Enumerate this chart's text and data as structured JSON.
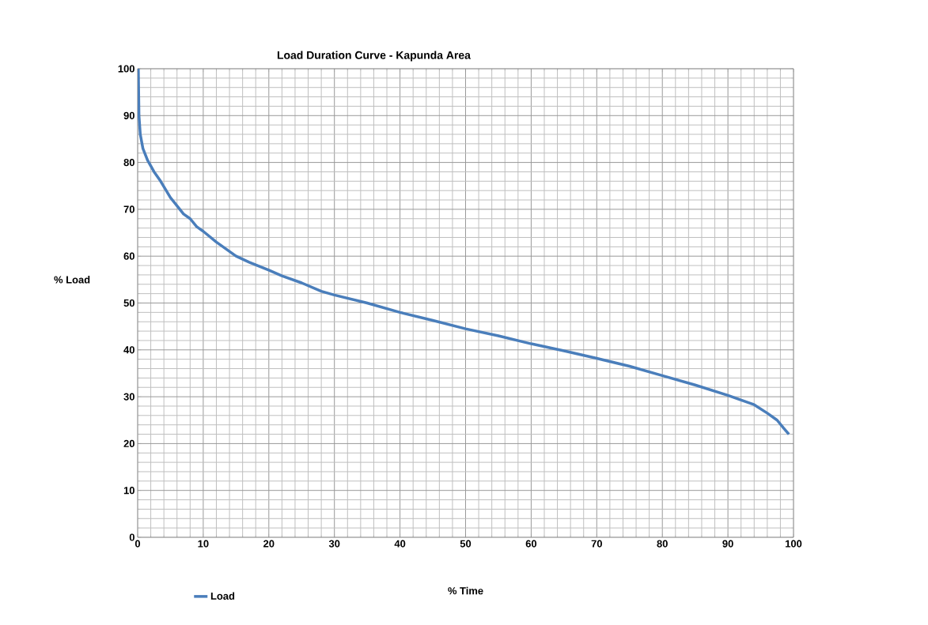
{
  "chart_data": {
    "type": "line",
    "title": "Load Duration Curve - Kapunda Area",
    "xlabel": "% Time",
    "ylabel": "% Load",
    "x": [
      0.1,
      0.2,
      0.4,
      0.8,
      1.5,
      2.5,
      3.5,
      5,
      7,
      8,
      9,
      10,
      12,
      15,
      17,
      20,
      22,
      25,
      28,
      30,
      35,
      40,
      45,
      50,
      55,
      60,
      65,
      70,
      75,
      80,
      85,
      90,
      94,
      96,
      97.5,
      98.5,
      99.3
    ],
    "series": [
      {
        "name": "Load",
        "color": "#4a7ebb",
        "values": [
          100,
          90,
          86,
          83,
          80.5,
          78,
          76,
          72.5,
          69,
          68,
          66.3,
          65.3,
          63,
          60,
          58.7,
          57,
          55.8,
          54.3,
          52.5,
          51.7,
          50,
          48,
          46.3,
          44.5,
          43,
          41.3,
          39.8,
          38.2,
          36.5,
          34.5,
          32.5,
          30.3,
          28.3,
          26.5,
          25,
          23.3,
          22
        ]
      }
    ],
    "xlim": [
      0,
      100
    ],
    "ylim": [
      0,
      100
    ],
    "xticks": [
      0,
      10,
      20,
      30,
      40,
      50,
      60,
      70,
      80,
      90,
      100
    ],
    "yticks": [
      0,
      10,
      20,
      30,
      40,
      50,
      60,
      70,
      80,
      90,
      100
    ],
    "grid": true,
    "legend": "bottom left",
    "marker": "none",
    "line_style": "solid"
  }
}
